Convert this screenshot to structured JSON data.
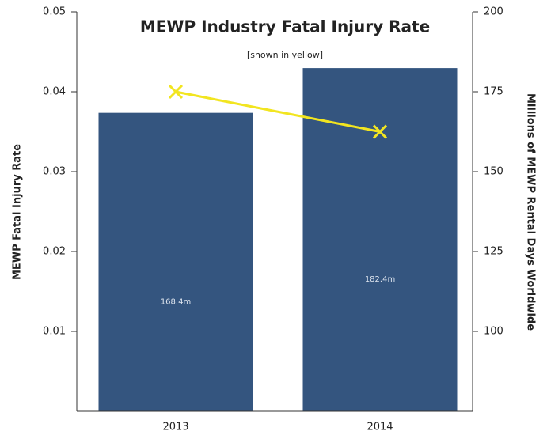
{
  "chart_data": {
    "type": "bar",
    "title": "MEWP Industry Fatal Injury Rate",
    "subtitle": "[shown in yellow]",
    "ylabel": "MEWP Fatal Injury Rate",
    "y2label": "Millions of MEWP Rental Days Worldwide",
    "categories": [
      "2013",
      "2014"
    ],
    "series": [
      {
        "type": "bar",
        "axis": "y2",
        "color": "#34557f",
        "values": [
          168.4,
          182.4
        ],
        "value_labels": [
          "168.4m",
          "182.4m"
        ]
      },
      {
        "type": "line",
        "color": "#f2e520",
        "values": [
          0.04,
          0.035
        ]
      }
    ],
    "ylim": [
      0,
      0.05
    ],
    "yticks": [
      0.01,
      0.02,
      0.03,
      0.04,
      0.05
    ],
    "y2lim": [
      75,
      200
    ],
    "y2ticks": [
      100,
      125,
      150,
      175,
      200
    ]
  }
}
